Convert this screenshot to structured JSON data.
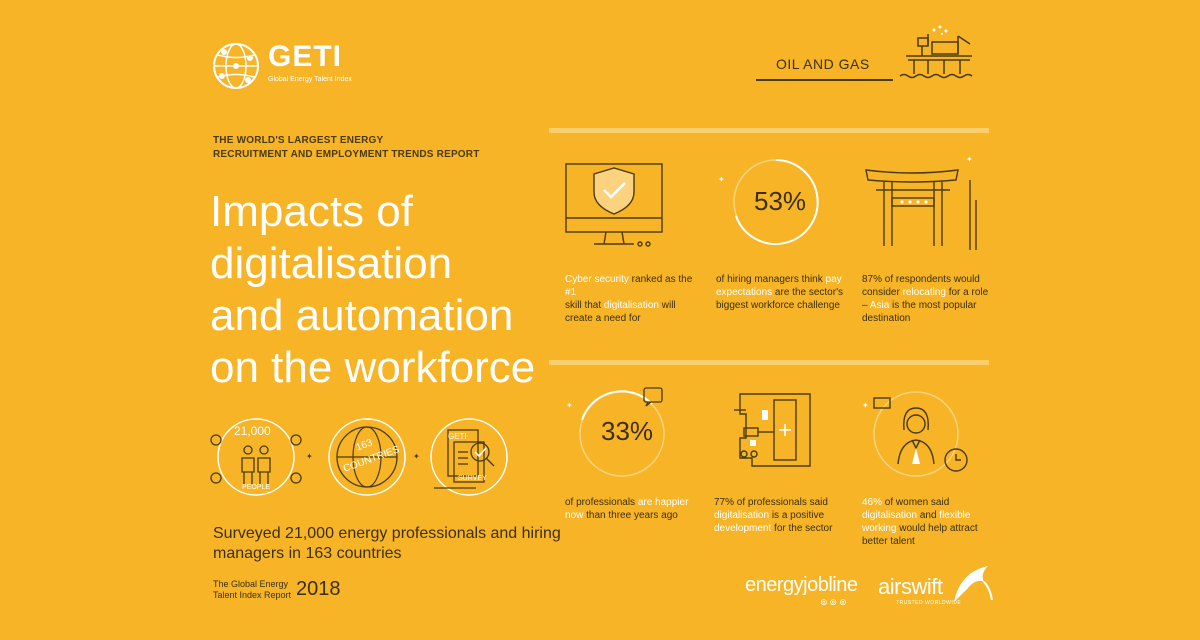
{
  "logo": {
    "name": "GETI",
    "subtitle": "Global Energy Talent Index"
  },
  "sector": {
    "label": "OIL AND GAS"
  },
  "tagline": {
    "line1": "THE WORLD'S LARGEST ENERGY",
    "line2": "RECRUITMENT AND EMPLOYMENT TRENDS REPORT"
  },
  "headline": {
    "line1": "Impacts of",
    "line2": "digitalisation",
    "line3": "and automation",
    "line4": "on the workforce"
  },
  "badges": {
    "people_count": "21,000",
    "people_label": "PEOPLE",
    "countries_count": "163",
    "countries_label": "COUNTRIES",
    "survey_brand": "GETI",
    "survey_label": "SURVEY"
  },
  "surveyed": {
    "line1": "Surveyed 21,000 energy professionals and hiring",
    "line2": "managers in 163 countries"
  },
  "report": {
    "line1": "The Global Energy",
    "line2": "Talent Index Report",
    "year": "2018"
  },
  "stats": {
    "s1": {
      "a": "Cyber security",
      "b": " ranked as the ",
      "c": "#1",
      "d": "skill",
      "e": " that ",
      "f": "digitalisation",
      "g": " will",
      "h": "create a need for"
    },
    "s2": {
      "pct": "53%",
      "a": "of hiring managers think ",
      "b": "pay",
      "c": "expectations",
      "d": " are the sector's",
      "e": "biggest workforce challenge"
    },
    "s3": {
      "a": "87% of respondents would",
      "b": "consider ",
      "c": "relocating",
      "d": " for a role",
      "e": "– ",
      "f": "Asia",
      "g": " is the most popular",
      "h": "destination"
    },
    "s4": {
      "pct": "33%",
      "a": "of professionals ",
      "b": "are happier",
      "c": "now",
      "d": " than three years ago"
    },
    "s5": {
      "a": "77% of professionals said",
      "b": "digitalisation",
      "c": " is a positive",
      "d": "development",
      "e": " for the sector"
    },
    "s6": {
      "a": "46%",
      "b": " of women said",
      "c": "digitalisation",
      "d": " and ",
      "e": "flexible",
      "f": "working",
      "g": " would help attract",
      "h": "better talent"
    }
  },
  "partners": {
    "p1": "energyjobline",
    "p2": "airswift",
    "p2_sub": "TRUSTED WORLDWIDE"
  },
  "colors": {
    "background": "#f6b426",
    "ink": "#3b2f10",
    "highlight": "#ffffff",
    "rule": "#f9cf6d"
  }
}
